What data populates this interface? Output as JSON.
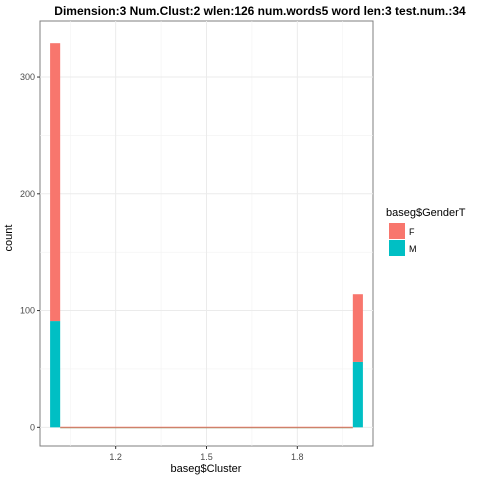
{
  "chart_data": {
    "type": "bar",
    "title": "Dimension:3  Num.Clust:2  wlen:126  num.words5  word len:3  test.num.:34",
    "xlabel": "baseg$Cluster",
    "ylabel": "count",
    "x_ticks": [
      1.2,
      1.5,
      1.8
    ],
    "x_tick_labels": [
      "1.2",
      "1.5",
      "1.8"
    ],
    "y_ticks": [
      0,
      100,
      200,
      300
    ],
    "y_tick_labels": [
      "0",
      "100",
      "200",
      "300"
    ],
    "xlim": [
      0.95,
      2.05
    ],
    "ylim": [
      -16,
      348
    ],
    "stacked": true,
    "grid": true,
    "legend_position": "right",
    "legend_title": "baseg$GenderT",
    "bin_width": 0.0333,
    "bins": [
      {
        "x": 1.0,
        "F": 238,
        "M": 91
      },
      {
        "x": 2.0,
        "F": 58,
        "M": 56
      }
    ],
    "series": [
      {
        "name": "F",
        "color": "#F8766D"
      },
      {
        "name": "M",
        "color": "#00BFC4"
      }
    ]
  }
}
